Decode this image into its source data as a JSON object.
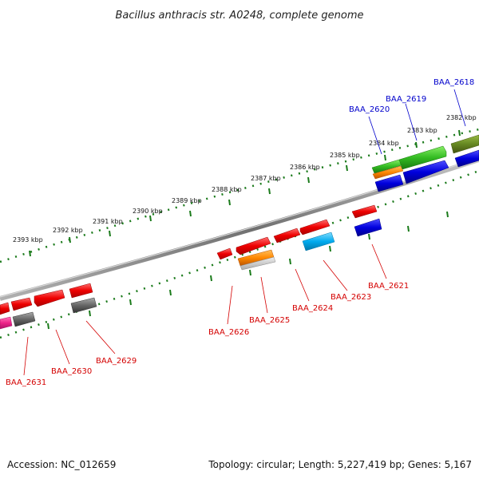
{
  "title": "Bacillus anthracis str. A0248, complete genome",
  "footer": {
    "accession": "Accession: NC_012659",
    "summary": "Topology: circular; Length: 5,227,419 bp; Genes: 5,167"
  },
  "ticks": [
    "2393 kbp",
    "2392 kbp",
    "2391 kbp",
    "2390 kbp",
    "2389 kbp",
    "2388 kbp",
    "2387 kbp",
    "2386 kbp",
    "2385 kbp",
    "2384 kbp",
    "2383 kbp",
    "2382 kbp"
  ],
  "genes": {
    "outer": [
      "BAA_2620",
      "BAA_2619",
      "BAA_2618"
    ],
    "inner": [
      "BAA_2621",
      "BAA_2623",
      "BAA_2624",
      "BAA_2625",
      "BAA_2626",
      "BAA_2629",
      "BAA_2630",
      "BAA_2631"
    ]
  },
  "colors": {
    "backbone": "#808080",
    "tick": "#1a7a1a",
    "red": "#e00000",
    "blue": "#0000dd",
    "green": "#33bb22",
    "orange": "#ff8800",
    "cyan": "#00aaee",
    "gray": "#666666",
    "olive": "#668822",
    "magenta": "#ee2288"
  }
}
